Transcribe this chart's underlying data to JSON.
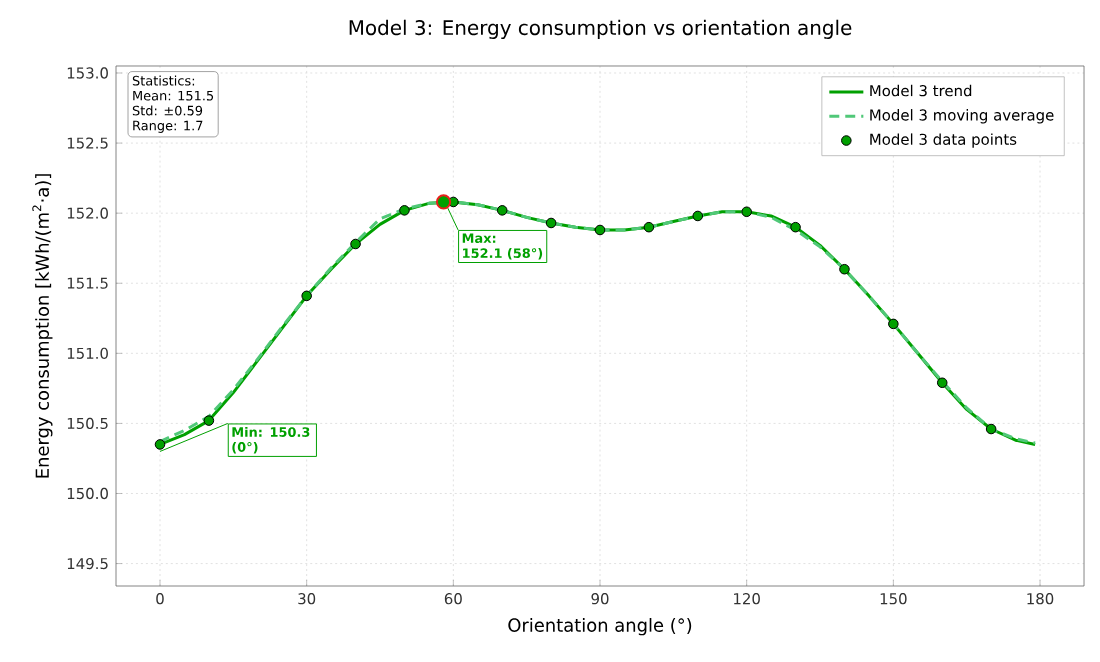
{
  "chart_data": {
    "type": "line",
    "title": "Model 3: Energy consumption vs orientation angle",
    "xlabel": "Orientation angle (°)",
    "ylabel": "Energy consumption [kWh/(m$^{2}$·a)]",
    "xlim": [
      -9,
      189
    ],
    "xticks": [
      0,
      30,
      60,
      90,
      120,
      150,
      180
    ],
    "ylim": [
      149.34,
      153.05
    ],
    "yticks": [
      149.5,
      {
        "value": 150,
        "label": "150.0"
      },
      150.5,
      {
        "value": 151,
        "label": "151.0"
      },
      151.5,
      {
        "value": 152,
        "label": "152.0"
      },
      152.5,
      {
        "value": 153,
        "label": "153.0"
      }
    ],
    "grid": true,
    "legend": "top right",
    "series": [
      {
        "name": "Model 3 trend",
        "color": "#00a000",
        "line_style": "solid",
        "marker": "none",
        "x": [
          0,
          5,
          10,
          15,
          20,
          25,
          30,
          35,
          40,
          45,
          50,
          55,
          60,
          65,
          70,
          75,
          80,
          85,
          90,
          95,
          100,
          105,
          110,
          115,
          120,
          125,
          130,
          135,
          140,
          145,
          150,
          155,
          160,
          165,
          170,
          175,
          179
        ],
        "values": [
          150.35,
          150.42,
          150.52,
          150.72,
          150.95,
          151.18,
          151.41,
          151.6,
          151.78,
          151.92,
          152.02,
          152.07,
          152.08,
          152.06,
          152.02,
          151.97,
          151.93,
          151.9,
          151.88,
          151.88,
          151.9,
          151.94,
          151.98,
          152.01,
          152.01,
          151.98,
          151.9,
          151.77,
          151.6,
          151.41,
          151.21,
          151.0,
          150.79,
          150.6,
          150.46,
          150.38,
          150.35
        ]
      },
      {
        "name": "Model 3 moving average",
        "color": "#50c878",
        "line_style": "dashed",
        "marker": "none",
        "x": [
          0,
          5,
          10,
          15,
          20,
          25,
          30,
          35,
          40,
          45,
          50,
          55,
          60,
          65,
          70,
          75,
          80,
          85,
          90,
          95,
          100,
          105,
          110,
          115,
          120,
          125,
          130,
          135,
          140,
          145,
          150,
          155,
          160,
          165,
          170,
          175,
          179
        ],
        "values": [
          150.37,
          150.45,
          150.55,
          150.74,
          150.96,
          151.19,
          151.41,
          151.61,
          151.79,
          151.96,
          152.03,
          152.07,
          152.08,
          152.06,
          152.02,
          151.97,
          151.93,
          151.9,
          151.88,
          151.88,
          151.9,
          151.94,
          151.98,
          152.01,
          152.01,
          151.97,
          151.88,
          151.76,
          151.6,
          151.41,
          151.21,
          151.0,
          150.8,
          150.61,
          150.46,
          150.39,
          150.36
        ]
      },
      {
        "name": "Model 3 data points",
        "type": "scatter",
        "color": "#00a000",
        "marker": "circle",
        "x": [
          0,
          10,
          20,
          30,
          40,
          50,
          60,
          70,
          80,
          90,
          100,
          110,
          120,
          130,
          140,
          150,
          160,
          170
        ],
        "values": [
          150.35,
          150.52,
          null,
          151.41,
          151.78,
          152.02,
          152.08,
          152.02,
          151.93,
          151.88,
          151.9,
          151.98,
          152.01,
          151.9,
          151.6,
          151.21,
          150.79,
          150.46
        ]
      },
      {
        "type": "scatter",
        "color": "#e8201c",
        "marker": "circle",
        "x": [
          58
        ],
        "values": [
          152.08
        ]
      }
    ],
    "annotations": [
      "Statistics:",
      "Mean: 151.5",
      "Std: ±0.59",
      "Range: 1.7",
      {
        "text": "Min: 150.3 (0°)",
        "x": 0,
        "y": 150.3
      },
      {
        "text": "Max: 152.1 (58°)",
        "x": 58,
        "y": 152.1
      }
    ]
  }
}
